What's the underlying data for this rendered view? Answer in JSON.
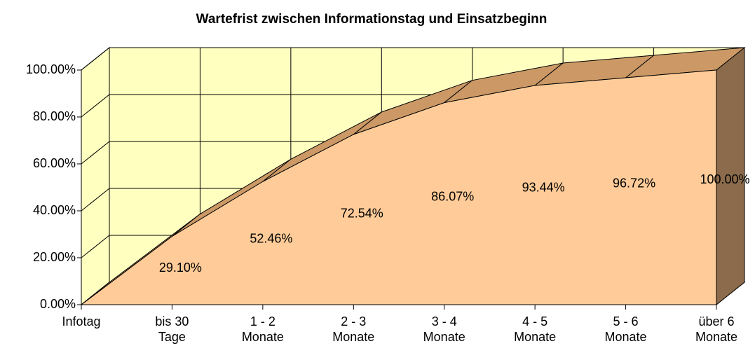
{
  "chart_data": {
    "type": "area3d",
    "title": "Wartefrist zwischen Informationstag und Einsatzbeginn",
    "categories": [
      "Infotag",
      "bis 30 Tage",
      "1 - 2 Monate",
      "2 - 3 Monate",
      "3 - 4 Monate",
      "4 - 5 Monate",
      "5 - 6 Monate",
      "über 6 Monate"
    ],
    "values": [
      0,
      29.1,
      52.46,
      72.54,
      86.07,
      93.44,
      96.72,
      100
    ],
    "value_labels": [
      null,
      "29.10%",
      "52.46%",
      "72.54%",
      "86.07%",
      "93.44%",
      "96.72%",
      "100.00%"
    ],
    "color": "#ffcc99",
    "ylim": [
      0,
      100
    ],
    "yticks": [
      {
        "value": 0,
        "label": "0.00%"
      },
      {
        "value": 20,
        "label": "20.00%"
      },
      {
        "value": 40,
        "label": "40.00%"
      },
      {
        "value": 60,
        "label": "60.00%"
      },
      {
        "value": 80,
        "label": "80.00%"
      },
      {
        "value": 100,
        "label": "100.00%"
      }
    ],
    "grid": true
  }
}
